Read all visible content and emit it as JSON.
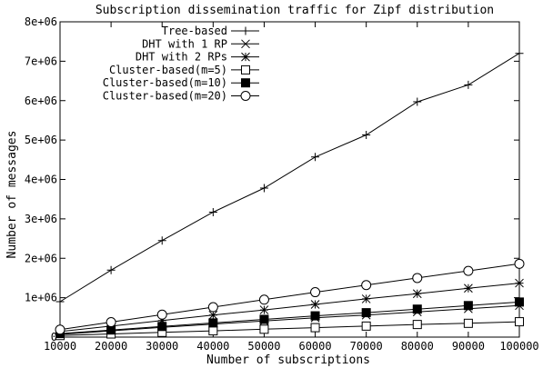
{
  "chart_data": {
    "type": "line",
    "title": "Subscription dissemination traffic for Zipf distribution",
    "xlabel": "Number of subscriptions",
    "ylabel": "Number of messages",
    "xlim": [
      10000,
      100000
    ],
    "ylim": [
      0,
      8000000
    ],
    "x": [
      10000,
      20000,
      30000,
      40000,
      50000,
      60000,
      70000,
      80000,
      90000,
      100000
    ],
    "xticks": [
      "10000",
      "20000",
      "30000",
      "40000",
      "50000",
      "60000",
      "70000",
      "80000",
      "90000",
      "100000"
    ],
    "yticks": [
      {
        "value": 0,
        "label": "0"
      },
      {
        "value": 1000000,
        "label": "1e+06"
      },
      {
        "value": 2000000,
        "label": "2e+06"
      },
      {
        "value": 3000000,
        "label": "3e+06"
      },
      {
        "value": 4000000,
        "label": "4e+06"
      },
      {
        "value": 5000000,
        "label": "5e+06"
      },
      {
        "value": 6000000,
        "label": "6e+06"
      },
      {
        "value": 7000000,
        "label": "7e+06"
      },
      {
        "value": 8000000,
        "label": "8e+06"
      }
    ],
    "legend_position": "top-right",
    "grid": false,
    "series": [
      {
        "name": "Tree-based",
        "marker": "plus",
        "values": [
          900000,
          1700000,
          2450000,
          3170000,
          3780000,
          4570000,
          5130000,
          5970000,
          6400000,
          7200000
        ]
      },
      {
        "name": "DHT with 1 RP",
        "marker": "cross",
        "values": [
          70000,
          160000,
          250000,
          330000,
          410000,
          490000,
          560000,
          640000,
          720000,
          800000
        ]
      },
      {
        "name": "DHT with 2 RPs",
        "marker": "star",
        "values": [
          140000,
          280000,
          420000,
          560000,
          690000,
          830000,
          970000,
          1100000,
          1240000,
          1370000
        ]
      },
      {
        "name": "Cluster-based(m=5)",
        "marker": "square-open",
        "values": [
          40000,
          80000,
          120000,
          160000,
          200000,
          240000,
          280000,
          320000,
          350000,
          390000
        ]
      },
      {
        "name": "Cluster-based(m=10)",
        "marker": "square-filled",
        "values": [
          90000,
          180000,
          270000,
          360000,
          450000,
          540000,
          620000,
          710000,
          800000,
          890000
        ]
      },
      {
        "name": "Cluster-based(m=20)",
        "marker": "circle-open",
        "values": [
          190000,
          380000,
          570000,
          760000,
          950000,
          1140000,
          1320000,
          1500000,
          1680000,
          1860000
        ]
      }
    ]
  }
}
